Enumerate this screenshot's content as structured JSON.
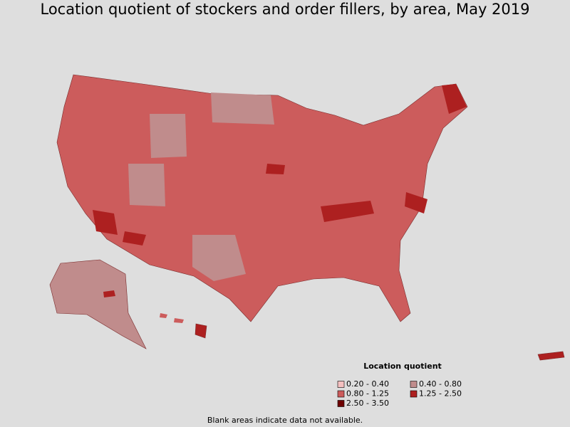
{
  "title": "Location quotient of stockers and order fillers, by area, May 2019",
  "legend": {
    "title": "Location quotient",
    "items": [
      {
        "label": "0.20 - 0.40",
        "color": "#f4c0c0"
      },
      {
        "label": "0.40 - 0.80",
        "color": "#c08c8c"
      },
      {
        "label": "0.80 - 1.25",
        "color": "#cc5c5c"
      },
      {
        "label": "1.25 - 2.50",
        "color": "#ad2020"
      },
      {
        "label": "2.50 - 3.50",
        "color": "#6e0000"
      }
    ]
  },
  "footnote": "Blank areas indicate data not available."
}
